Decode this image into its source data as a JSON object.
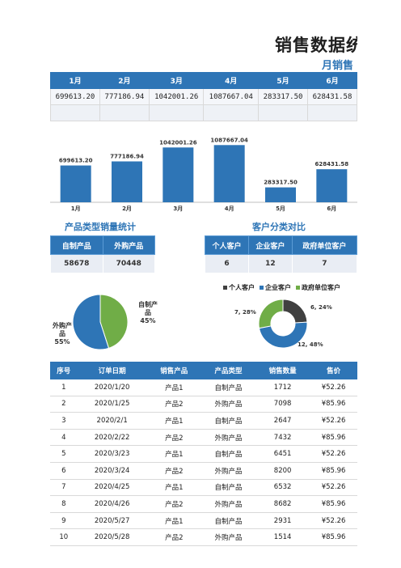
{
  "title": "销售数据统计",
  "subtitle": "月销售",
  "monthly": {
    "headers": [
      "1月",
      "2月",
      "3月",
      "4月",
      "5月",
      "6月"
    ],
    "values": [
      "699613.20",
      "777186.94",
      "1042001.26",
      "1087667.04",
      "283317.50",
      "628431.58"
    ]
  },
  "chart_data": [
    {
      "type": "bar",
      "categories": [
        "1月",
        "2月",
        "3月",
        "4月",
        "5月",
        "6月"
      ],
      "values": [
        699613.2,
        777186.94,
        1042001.26,
        1087667.04,
        283317.5,
        628431.58
      ],
      "labels": [
        "699613.20",
        "777186.94",
        "1042001.26",
        "1087667.04",
        "283317.50",
        "628431.58"
      ],
      "color": "#2e75b6"
    },
    {
      "type": "pie",
      "categories": [
        "自制产品",
        "外购产品"
      ],
      "values": [
        45,
        55
      ],
      "labels": [
        "自制产品\n45%",
        "外购产品\n55%"
      ],
      "colors": [
        "#70ad47",
        "#2e75b6"
      ]
    },
    {
      "type": "pie",
      "donut": true,
      "categories": [
        "个人客户",
        "企业客户",
        "政府单位客户"
      ],
      "values": [
        6,
        12,
        7
      ],
      "labels": [
        "6, 24%",
        "12, 48%",
        "7, 28%"
      ],
      "colors": [
        "#404040",
        "#2e75b6",
        "#70ad47"
      ],
      "legend": "top"
    }
  ],
  "product_stats": {
    "title": "产品类型销量统计",
    "headers": [
      "自制产品",
      "外购产品"
    ],
    "values": [
      "58678",
      "70448"
    ]
  },
  "customer_stats": {
    "title": "客户分类对比",
    "headers": [
      "个人客户",
      "企业客户",
      "政府单位客户"
    ],
    "values": [
      "6",
      "12",
      "7"
    ]
  },
  "orders": {
    "headers": [
      "序号",
      "订单日期",
      "销售产品",
      "产品类型",
      "销售数量",
      "售价"
    ],
    "rows": [
      [
        "1",
        "2020/1/20",
        "产品1",
        "自制产品",
        "1712",
        "¥52.26"
      ],
      [
        "2",
        "2020/1/25",
        "产品2",
        "外购产品",
        "7098",
        "¥85.96"
      ],
      [
        "3",
        "2020/2/1",
        "产品1",
        "自制产品",
        "2647",
        "¥52.26"
      ],
      [
        "4",
        "2020/2/22",
        "产品2",
        "外购产品",
        "7432",
        "¥85.96"
      ],
      [
        "5",
        "2020/3/23",
        "产品1",
        "自制产品",
        "6451",
        "¥52.26"
      ],
      [
        "6",
        "2020/3/24",
        "产品2",
        "外购产品",
        "8200",
        "¥85.96"
      ],
      [
        "7",
        "2020/4/25",
        "产品1",
        "自制产品",
        "6532",
        "¥52.26"
      ],
      [
        "8",
        "2020/4/26",
        "产品2",
        "外购产品",
        "8682",
        "¥85.96"
      ],
      [
        "9",
        "2020/5/27",
        "产品1",
        "自制产品",
        "2931",
        "¥52.26"
      ],
      [
        "10",
        "2020/5/28",
        "产品2",
        "外购产品",
        "1514",
        "¥85.96"
      ]
    ]
  }
}
